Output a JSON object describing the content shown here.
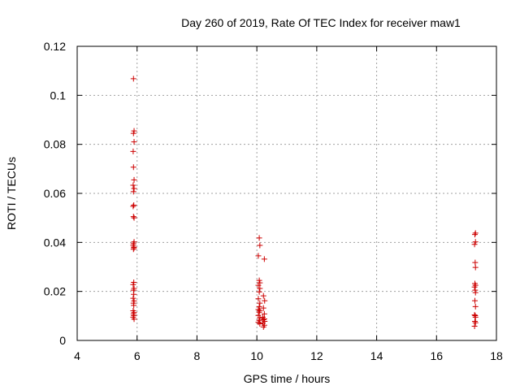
{
  "chart_data": {
    "type": "scatter",
    "title": "Day 260 of 2019, Rate Of TEC Index for receiver maw1",
    "xlabel": "GPS time / hours",
    "ylabel": "ROTI / TECUs",
    "xlim": [
      4,
      18
    ],
    "ylim": [
      0,
      0.12
    ],
    "xticks": [
      4,
      6,
      8,
      10,
      12,
      14,
      16,
      18
    ],
    "yticks": [
      0,
      0.02,
      0.04,
      0.06,
      0.08,
      0.1,
      0.12
    ],
    "xtick_labels": [
      "4",
      "6",
      "8",
      "10",
      "12",
      "14",
      "16",
      "18"
    ],
    "ytick_labels": [
      "0",
      "0.02",
      "0.04",
      "0.06",
      "0.08",
      "0.1",
      "0.12"
    ],
    "grid": true,
    "marker": "+",
    "color": "#cc0000",
    "series": [
      {
        "name": "maw1",
        "points": [
          [
            5.88,
            0.1068
          ],
          [
            5.9,
            0.0855
          ],
          [
            5.88,
            0.0845
          ],
          [
            5.9,
            0.081
          ],
          [
            5.87,
            0.0771
          ],
          [
            5.88,
            0.0707
          ],
          [
            5.9,
            0.0655
          ],
          [
            5.87,
            0.0633
          ],
          [
            5.9,
            0.062
          ],
          [
            5.88,
            0.0607
          ],
          [
            5.89,
            0.0552
          ],
          [
            5.87,
            0.0547
          ],
          [
            5.88,
            0.0505
          ],
          [
            5.9,
            0.05
          ],
          [
            5.9,
            0.0402
          ],
          [
            5.88,
            0.0395
          ],
          [
            5.87,
            0.0388
          ],
          [
            5.89,
            0.0381
          ],
          [
            5.9,
            0.0378
          ],
          [
            5.88,
            0.0372
          ],
          [
            5.89,
            0.0237
          ],
          [
            5.87,
            0.0228
          ],
          [
            5.9,
            0.0212
          ],
          [
            5.88,
            0.0205
          ],
          [
            5.89,
            0.0188
          ],
          [
            5.87,
            0.0172
          ],
          [
            5.9,
            0.0161
          ],
          [
            5.88,
            0.0152
          ],
          [
            5.89,
            0.0143
          ],
          [
            5.87,
            0.0121
          ],
          [
            5.9,
            0.0114
          ],
          [
            5.88,
            0.0108
          ],
          [
            5.89,
            0.0101
          ],
          [
            5.87,
            0.0095
          ],
          [
            5.9,
            0.0087
          ],
          [
            10.08,
            0.0418
          ],
          [
            10.1,
            0.0388
          ],
          [
            10.05,
            0.0345
          ],
          [
            10.25,
            0.0332
          ],
          [
            10.08,
            0.0245
          ],
          [
            10.1,
            0.0235
          ],
          [
            10.05,
            0.0225
          ],
          [
            10.1,
            0.0212
          ],
          [
            10.08,
            0.0198
          ],
          [
            10.22,
            0.0182
          ],
          [
            10.05,
            0.017
          ],
          [
            10.26,
            0.0162
          ],
          [
            10.1,
            0.0152
          ],
          [
            10.08,
            0.0138
          ],
          [
            10.22,
            0.0132
          ],
          [
            10.05,
            0.0126
          ],
          [
            10.1,
            0.0122
          ],
          [
            10.08,
            0.0115
          ],
          [
            10.25,
            0.0108
          ],
          [
            10.05,
            0.0102
          ],
          [
            10.2,
            0.0095
          ],
          [
            10.1,
            0.0092
          ],
          [
            10.25,
            0.0088
          ],
          [
            10.22,
            0.0085
          ],
          [
            10.08,
            0.0082
          ],
          [
            10.26,
            0.0078
          ],
          [
            10.05,
            0.0074
          ],
          [
            10.2,
            0.0071
          ],
          [
            10.1,
            0.0068
          ],
          [
            10.25,
            0.0062
          ],
          [
            10.22,
            0.0055
          ],
          [
            17.3,
            0.0438
          ],
          [
            17.28,
            0.0432
          ],
          [
            17.3,
            0.0402
          ],
          [
            17.27,
            0.0392
          ],
          [
            17.29,
            0.0318
          ],
          [
            17.3,
            0.0298
          ],
          [
            17.28,
            0.0232
          ],
          [
            17.3,
            0.0225
          ],
          [
            17.27,
            0.0218
          ],
          [
            17.29,
            0.0205
          ],
          [
            17.3,
            0.0195
          ],
          [
            17.28,
            0.0162
          ],
          [
            17.3,
            0.0138
          ],
          [
            17.27,
            0.0104
          ],
          [
            17.29,
            0.0101
          ],
          [
            17.3,
            0.0095
          ],
          [
            17.28,
            0.0078
          ],
          [
            17.3,
            0.0072
          ],
          [
            17.27,
            0.0058
          ]
        ]
      }
    ]
  }
}
